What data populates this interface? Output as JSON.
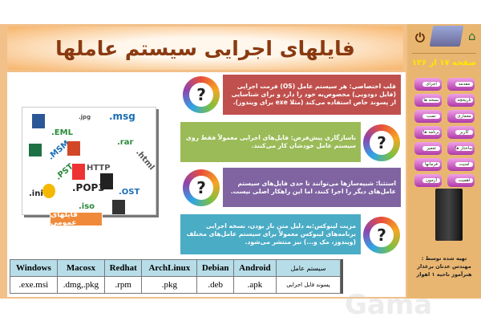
{
  "title": "فایلهای اجرایی سیستم عاملها",
  "page_indicator": "صفحه ۱۷ از ۱۲۶",
  "cards": [
    {
      "text": "قلب اختصاصی: هر سیستم عامل (OS) فرمت اجرایی (فایل دودویی) مخصوص‌به خود را دارد و برای شناسایی از پسوند خاص استفاده می‌کند (مثلا exe برای ویندوز).",
      "color": "#c0504d"
    },
    {
      "text": "ناسازگاری پیش‌فرض: فایل‌های اجرایی معمولاً فقط روی سیستم عامل خودشان کار می‌کنند.",
      "color": "#9bbb59"
    },
    {
      "text": "استثنا: شبیه‌سازها می‌توانند تا حدی فایل‌های سیستم عامل‌های دیگر را اجرا کنند، اما این راهکار اصلی نیست.",
      "color": "#8064a2"
    },
    {
      "text": "مزیت لینوکس:به دلیل متن باز بودن، نسخه اجرایی برنامه‌های لینوکس معمولاً برای سیستم عامل‌های مختلف (ویندوز، مک و...) نیز منتشر می‌شود.",
      "color": "#4bacc6"
    }
  ],
  "files_image": {
    "label": "فایلهای عمومی",
    "tags": [
      ".msg",
      ".EML",
      ".rar",
      ".MSM",
      ".html",
      ".PST",
      "HTTP",
      ".ini",
      ".POP3",
      ".OST",
      ".iso",
      ".jpg"
    ]
  },
  "table": {
    "headers": [
      "سیستم عامل",
      "Android",
      "Debian",
      "ArchLinux",
      "Redhat",
      "Macosx",
      "Windows"
    ],
    "row": [
      "پسوند فایل اجرایی",
      ".apk",
      ".deb",
      ".pkg",
      ".rpm",
      ".dmg,.pkg",
      ".exe.msi"
    ]
  },
  "sidebar": {
    "buttons_right": [
      "مقدمه",
      "تاریخچه",
      "معماری",
      "کاربر",
      "ساختار ها",
      "امنیت",
      "اهمیت"
    ],
    "buttons_left": [
      "اجزای",
      "نسخه ها",
      "نصب",
      "برنامه ها",
      "تعمیر",
      "فرمانها",
      "آزمون"
    ],
    "credit": [
      "تهیه شده توسط :",
      "مهندس عدنان برغذار",
      "هنرآموز ناحیه ۱ اهواز"
    ]
  },
  "watermark": "Gama"
}
